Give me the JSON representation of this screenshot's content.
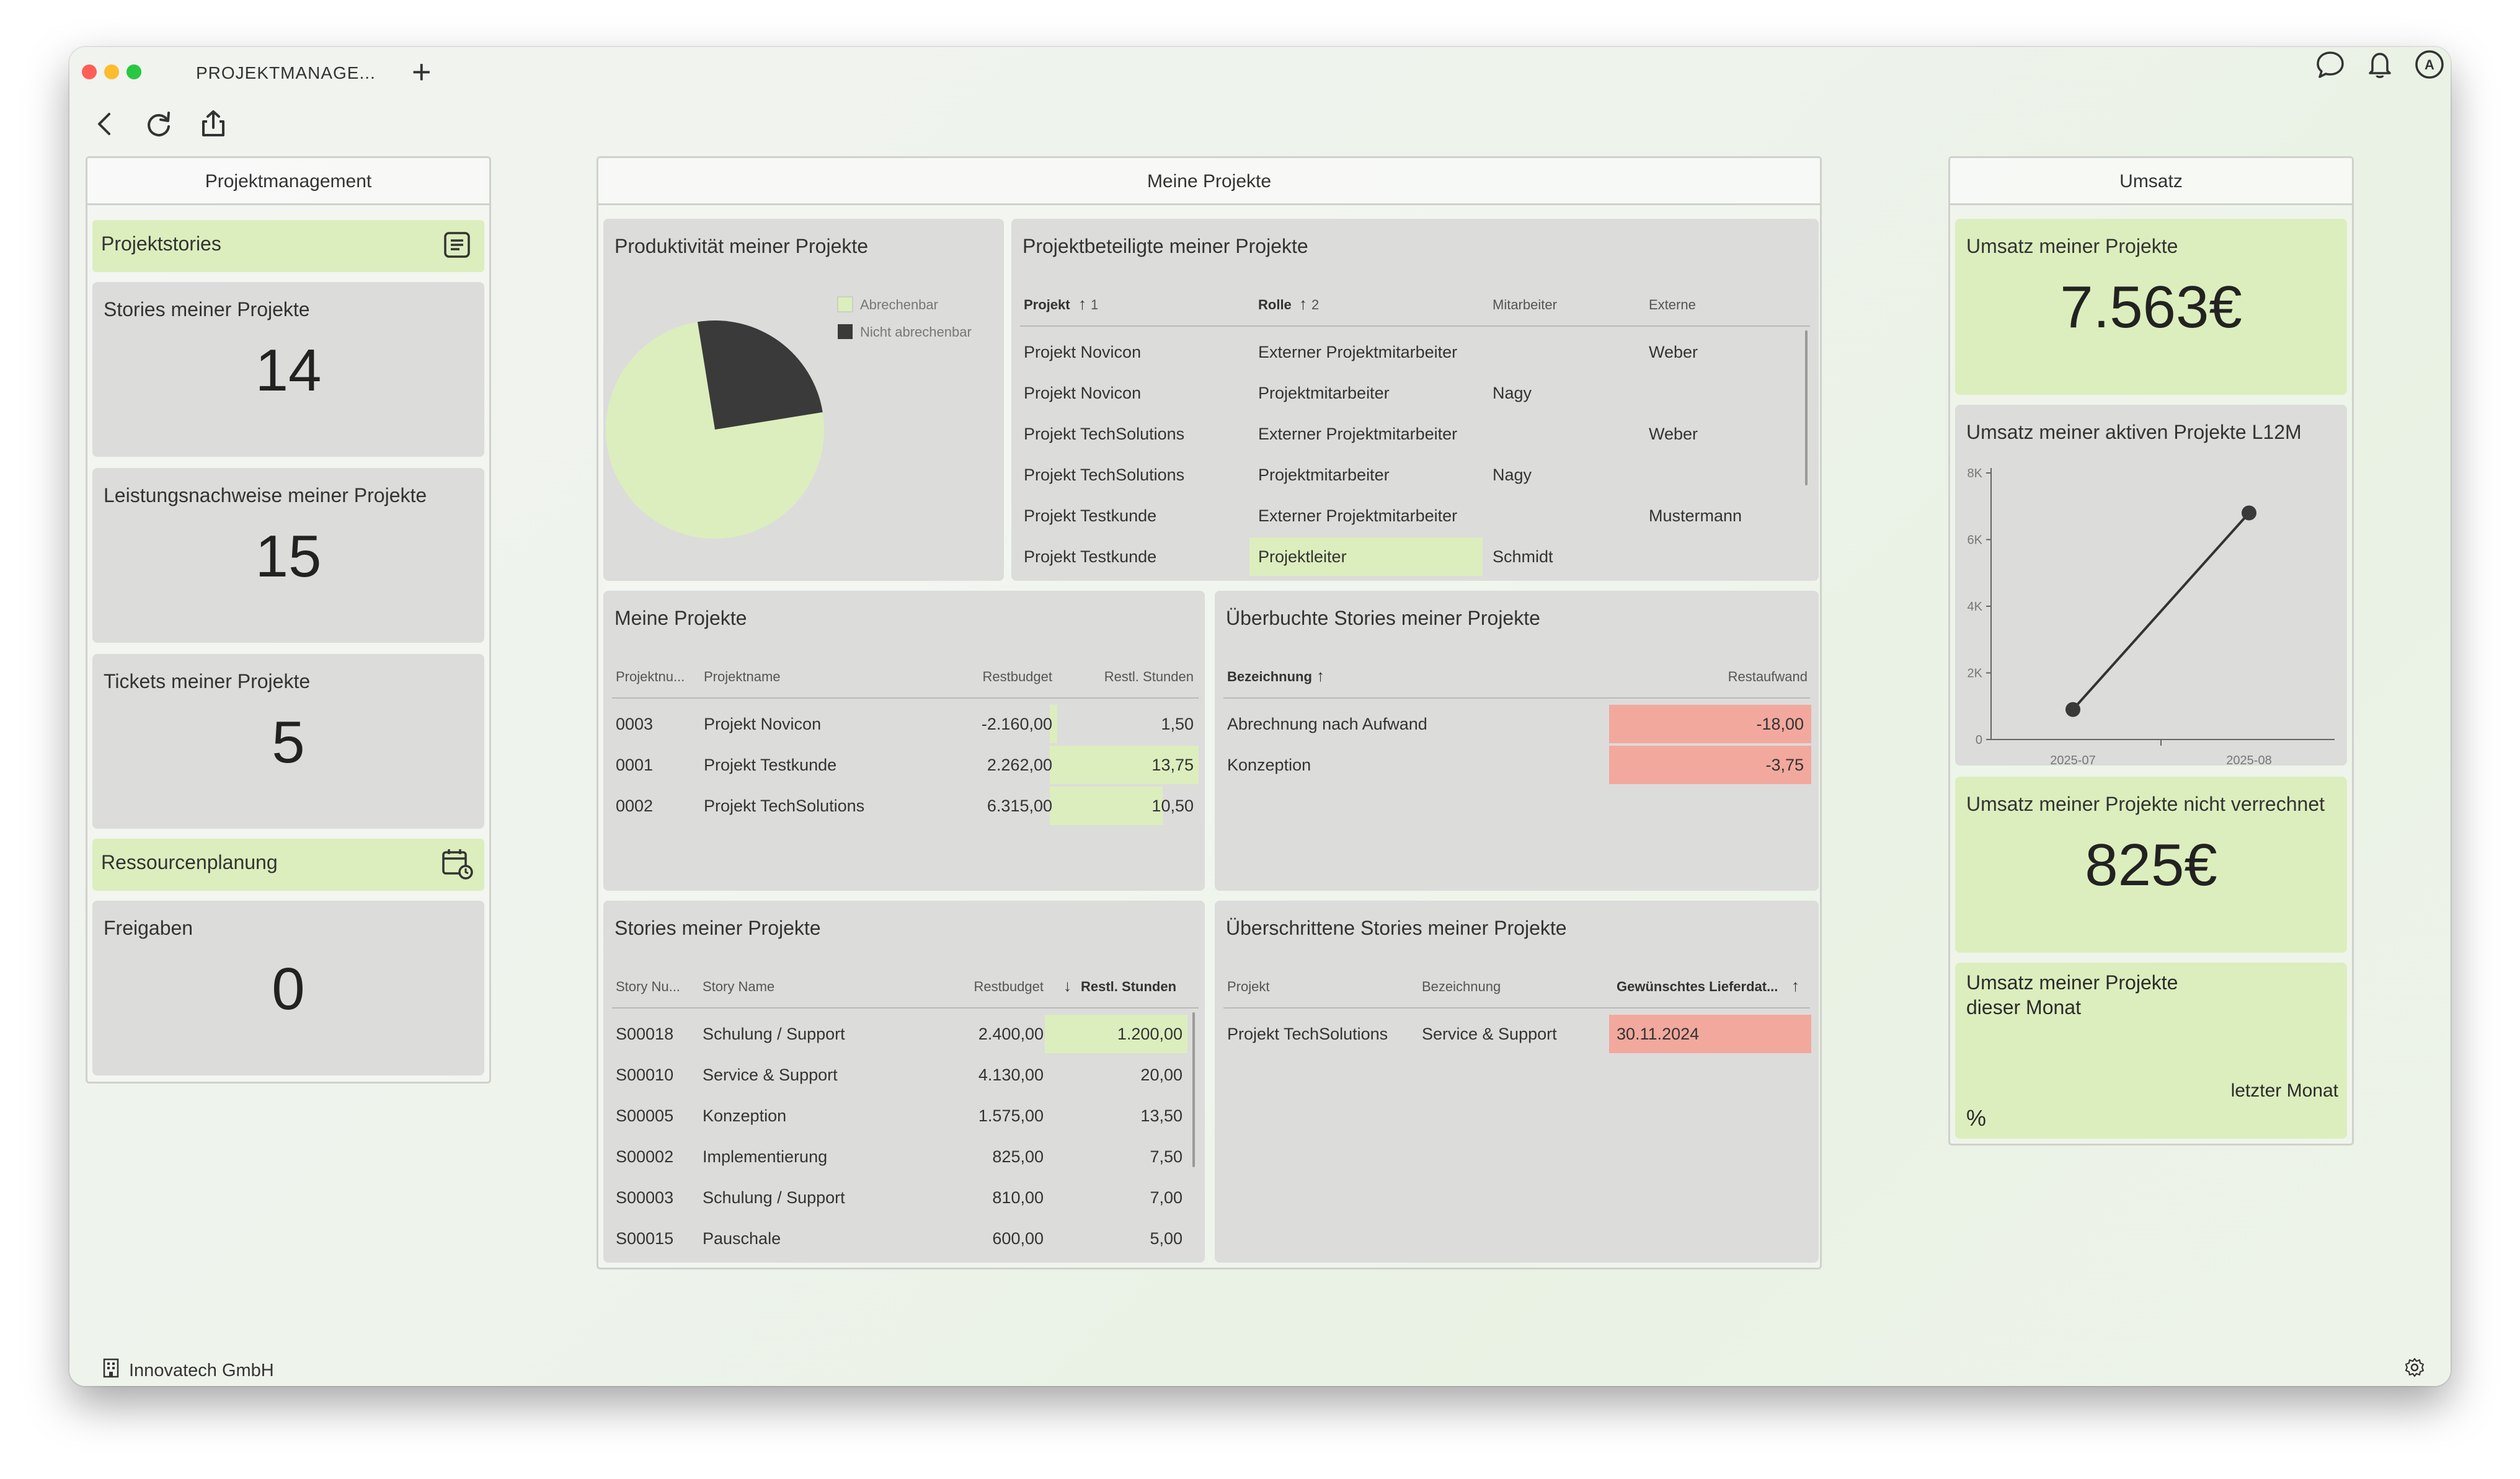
{
  "tab": {
    "title": "PROJEKTMANAGE...",
    "plus": "+"
  },
  "footer": {
    "company": "Innovatech GmbH"
  },
  "left": {
    "title": "Projektmanagement",
    "section1": "Projektstories",
    "stories_label": "Stories meiner Projekte",
    "stories_value": "14",
    "leistung_label": "Leistungsnachweise meiner Projekte",
    "leistung_value": "15",
    "tickets_label": "Tickets meiner Projekte",
    "tickets_value": "5",
    "section2": "Ressourcenplanung",
    "freigaben_label": "Freigaben",
    "freigaben_value": "0"
  },
  "center": {
    "title": "Meine Projekte",
    "pie": {
      "title": "Produktivität meiner Projekte",
      "legend": [
        "Abrechenbar",
        "Nicht abrechenbar"
      ],
      "colors": [
        "#dceebd",
        "#3a3a3a"
      ]
    },
    "beteiligte": {
      "title": "Projektbeteiligte meiner Projekte",
      "headers": [
        "Projekt",
        "1",
        "Rolle",
        "2",
        "Mitarbeiter",
        "Externe"
      ],
      "rows": [
        [
          "Projekt Novicon",
          "Externer Projektmitarbeiter",
          "",
          "Weber"
        ],
        [
          "Projekt Novicon",
          "Projektmitarbeiter",
          "Nagy",
          ""
        ],
        [
          "Projekt TechSolutions",
          "Externer Projektmitarbeiter",
          "",
          "Weber"
        ],
        [
          "Projekt TechSolutions",
          "Projektmitarbeiter",
          "Nagy",
          ""
        ],
        [
          "Projekt Testkunde",
          "Externer Projektmitarbeiter",
          "",
          "Mustermann"
        ],
        [
          "Projekt Testkunde",
          "Projektleiter",
          "Schmidt",
          ""
        ]
      ]
    },
    "meine": {
      "title": "Meine Projekte",
      "headers": [
        "Projektnu...",
        "Projektname",
        "Restbudget",
        "Restl. Stunden"
      ],
      "rows": [
        [
          "0003",
          "Projekt Novicon",
          "-2.160,00",
          "1,50"
        ],
        [
          "0001",
          "Projekt Testkunde",
          "2.262,00",
          "13,75"
        ],
        [
          "0002",
          "Projekt TechSolutions",
          "6.315,00",
          "10,50"
        ]
      ],
      "hours_fill": [
        0.05,
        1.0,
        0.76
      ]
    },
    "ueberbucht": {
      "title": "Überbuchte Stories meiner Projekte",
      "headers": [
        "Bezeichnung",
        "Restaufwand"
      ],
      "rows": [
        [
          "Abrechnung nach Aufwand",
          "-18,00"
        ],
        [
          "Konzeption",
          "-3,75"
        ]
      ]
    },
    "stories": {
      "title": "Stories meiner Projekte",
      "headers": [
        "Story Nu...",
        "Story Name",
        "Restbudget",
        "Restl. Stunden"
      ],
      "rows": [
        [
          "S00018",
          "Schulung / Support",
          "2.400,00",
          "1.200,00"
        ],
        [
          "S00010",
          "Service & Support",
          "4.130,00",
          "20,00"
        ],
        [
          "S00005",
          "Konzeption",
          "1.575,00",
          "13,50"
        ],
        [
          "S00002",
          "Implementierung",
          "825,00",
          "7,50"
        ],
        [
          "S00003",
          "Schulung / Support",
          "810,00",
          "7,00"
        ],
        [
          "S00015",
          "Pauschale",
          "600,00",
          "5,00"
        ]
      ]
    },
    "ueberschritten": {
      "title": "Überschrittene Stories meiner Projekte",
      "headers": [
        "Projekt",
        "Bezeichnung",
        "Gewünschtes Lieferdat..."
      ],
      "rows": [
        [
          "Projekt TechSolutions",
          "Service & Support",
          "30.11.2024"
        ]
      ]
    }
  },
  "right": {
    "title": "Umsatz",
    "umsatz_label": "Umsatz meiner Projekte",
    "umsatz_value": "7.563€",
    "chart_label": "Umsatz meiner aktiven Projekte L12M",
    "nicht_label": "Umsatz meiner Projekte nicht verrechnet",
    "nicht_value": "825€",
    "monat_label1": "Umsatz meiner Projekte",
    "monat_label2": "dieser Monat",
    "letzter": "letzter Monat",
    "percent": "%"
  },
  "chart_data": [
    {
      "type": "pie",
      "title": "Produktivität meiner Projekte",
      "labels": [
        "Abrechenbar",
        "Nicht abrechenbar"
      ],
      "values": [
        75,
        25
      ],
      "colors": [
        "#dceebd",
        "#3a3a3a"
      ],
      "legend": "top-right"
    },
    {
      "type": "line",
      "title": "Umsatz meiner aktiven Projekte L12M",
      "categories": [
        "2025-07",
        "2025-08"
      ],
      "series": [
        {
          "values": [
            900,
            6800
          ]
        }
      ],
      "ylim": [
        0,
        8000
      ],
      "yticks": [
        "0",
        "2K",
        "4K",
        "6K",
        "8K"
      ],
      "grid": false
    }
  ]
}
